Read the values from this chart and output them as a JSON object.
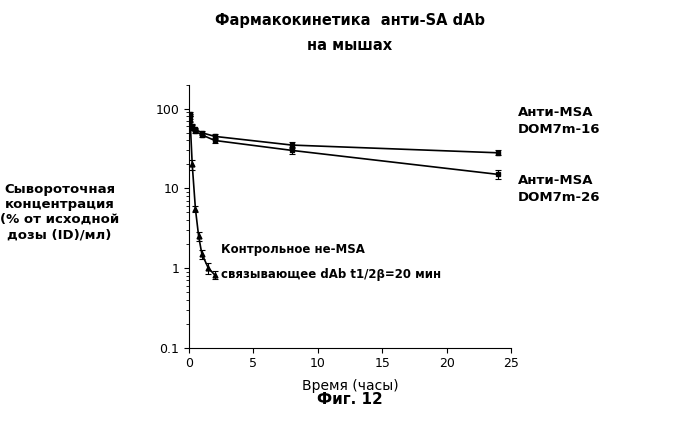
{
  "title_line1": "Фармакокинетика  анти-SA dAb",
  "title_line2": "на мышах",
  "xlabel": "Время (часы)",
  "ylabel_lines": [
    "Сывороточная",
    "концентрация",
    "(% от исходной",
    "дозы (ID)/мл)"
  ],
  "fig_label": "Фиг. 12",
  "xlim": [
    0,
    25
  ],
  "ylim": [
    0.1,
    200
  ],
  "xticks": [
    0,
    5,
    10,
    15,
    20,
    25
  ],
  "annotation_line1": "Контрольное не-MSA",
  "annotation_line2": "связывающее dAb t1/2β=20 мин",
  "legend1_line1": "Анти-MSA",
  "legend1_line2": "DOM7m-16",
  "legend2_line1": "Анти-MSA",
  "legend2_line2": "DOM7m-26",
  "series1_x": [
    0.083,
    0.25,
    0.5,
    1.0,
    2.0,
    8.0,
    24.0
  ],
  "series1_y": [
    85,
    60,
    55,
    50,
    45,
    35,
    28
  ],
  "series1_yerr": [
    5,
    4,
    3,
    3,
    3,
    3,
    2
  ],
  "series2_x": [
    0.083,
    0.25,
    0.5,
    1.0,
    2.0,
    8.0,
    24.0
  ],
  "series2_y": [
    80,
    58,
    52,
    47,
    40,
    30,
    15
  ],
  "series2_yerr": [
    5,
    4,
    3,
    3,
    3,
    3,
    2
  ],
  "series3_x": [
    0.083,
    0.25,
    0.5,
    0.75,
    1.0,
    1.5,
    2.0
  ],
  "series3_y": [
    75,
    20,
    5.5,
    2.5,
    1.5,
    1.0,
    0.82
  ],
  "series3_yerr": [
    6,
    3,
    0.5,
    0.3,
    0.2,
    0.15,
    0.1
  ],
  "color_s1": "#000000",
  "color_s2": "#000000",
  "color_s3": "#000000",
  "background": "#ffffff"
}
